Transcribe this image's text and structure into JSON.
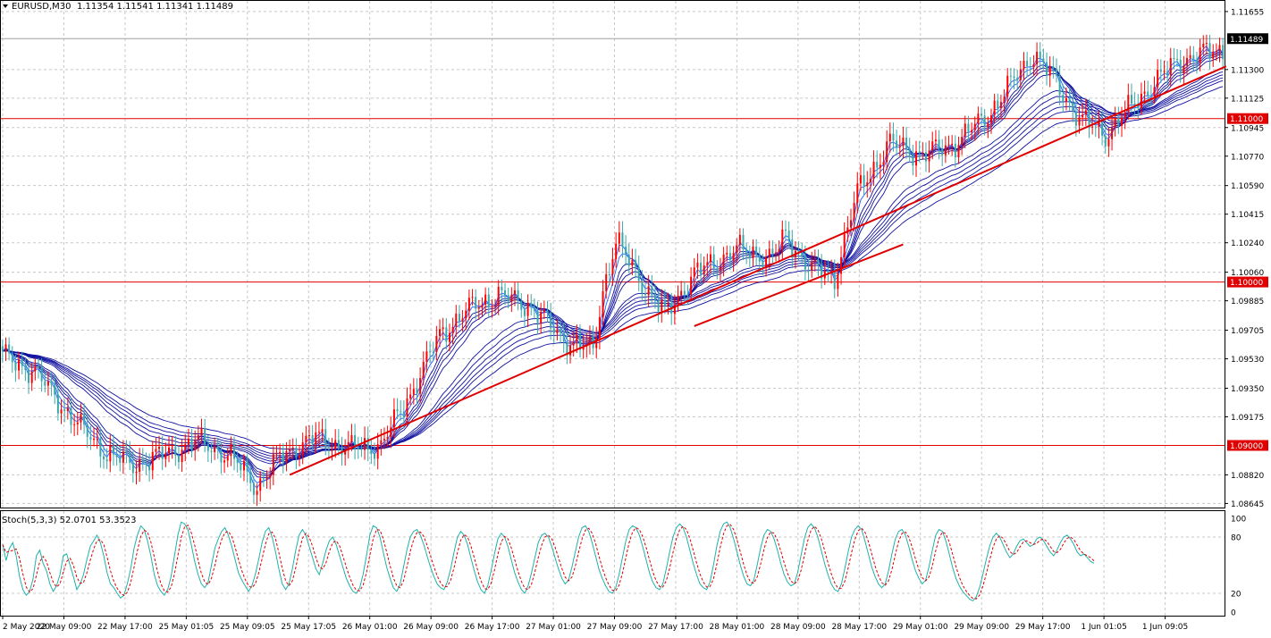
{
  "window": {
    "symbol_label": "EURUSD,M30",
    "ohlc_label": "1.11354 1.11541 1.11341 1.11489",
    "collapse_icon": "triangle-down-icon"
  },
  "colors": {
    "bull_candle": "#ff0000",
    "bear_candle": "#3aa8a8",
    "ma_ribbon": "#1010a0",
    "ma_fast": "#2060ff",
    "trendline": "#e00000",
    "level_line": "#e00000",
    "level_tag_bg": "#e00000",
    "price_tag_bg": "#000000",
    "grid": "#c8c8c8",
    "stoch_main": "#20b2aa",
    "stoch_signal": "#e00000"
  },
  "chart_data": [
    {
      "type": "candlestick",
      "title": "EURUSD,M30",
      "y_axis_ticks": [
        "1.11655",
        "1.11300",
        "1.11125",
        "1.10945",
        "1.10770",
        "1.10590",
        "1.10415",
        "1.10240",
        "1.10060",
        "1.09885",
        "1.09705",
        "1.09530",
        "1.09350",
        "1.09175",
        "1.08820",
        "1.08645"
      ],
      "ylim": [
        1.0862,
        1.1172
      ],
      "x_axis_ticks": [
        "2 May 2020",
        "22 May 09:00",
        "22 May 17:00",
        "25 May 01:05",
        "25 May 09:05",
        "25 May 17:05",
        "26 May 01:00",
        "26 May 09:00",
        "26 May 17:00",
        "27 May 01:00",
        "27 May 09:00",
        "27 May 17:00",
        "28 May 01:00",
        "28 May 09:00",
        "28 May 17:00",
        "29 May 01:00",
        "29 May 09:00",
        "29 May 17:00",
        "1 Jun 01:05",
        "1 Jun 09:05"
      ],
      "current_price": "1.11489",
      "horizontal_levels": [
        {
          "value": 1.11,
          "label": "1.11000"
        },
        {
          "value": 1.1,
          "label": "1.10000"
        },
        {
          "value": 1.09,
          "label": "1.09000"
        }
      ],
      "close_path": [
        [
          0,
          1.0955
        ],
        [
          10,
          1.0945
        ],
        [
          22,
          1.0915
        ],
        [
          32,
          1.0895
        ],
        [
          40,
          1.0888
        ],
        [
          50,
          1.0895
        ],
        [
          60,
          1.0903
        ],
        [
          70,
          1.0893
        ],
        [
          78,
          1.0875
        ],
        [
          86,
          1.0895
        ],
        [
          96,
          1.0905
        ],
        [
          106,
          1.0898
        ],
        [
          116,
          1.09
        ],
        [
          126,
          1.0935
        ],
        [
          134,
          1.0968
        ],
        [
          144,
          1.0985
        ],
        [
          152,
          1.0992
        ],
        [
          162,
          1.0985
        ],
        [
          172,
          1.0965
        ],
        [
          181,
          1.0958
        ],
        [
          184,
          1.0995
        ],
        [
          188,
          1.1025
        ],
        [
          196,
          1.1
        ],
        [
          203,
          1.098
        ],
        [
          212,
          1.1005
        ],
        [
          225,
          1.102
        ],
        [
          236,
          1.1015
        ],
        [
          240,
          1.1028
        ],
        [
          248,
          1.1008
        ],
        [
          255,
          1.1003
        ],
        [
          262,
          1.1055
        ],
        [
          272,
          1.1085
        ],
        [
          282,
          1.1078
        ],
        [
          292,
          1.1085
        ],
        [
          302,
          1.1102
        ],
        [
          316,
          1.114
        ],
        [
          322,
          1.1125
        ],
        [
          330,
          1.11
        ],
        [
          338,
          1.109
        ],
        [
          344,
          1.1103
        ],
        [
          352,
          1.112
        ],
        [
          360,
          1.1135
        ],
        [
          368,
          1.114
        ],
        [
          374,
          1.1142
        ]
      ],
      "total_bars": 375,
      "trendlines": [
        {
          "from": [
            88,
            1.0882
          ],
          "to": [
            375,
            1.1132
          ]
        },
        {
          "from": [
            212,
            1.0973
          ],
          "to": [
            276,
            1.1023
          ]
        }
      ],
      "ma_periods": [
        3,
        5,
        8,
        10,
        12,
        15,
        30,
        35,
        40,
        45,
        50,
        60
      ]
    },
    {
      "type": "line",
      "title": "Stoch(5,3,3) 52.0701 53.3523",
      "y_axis_ticks": [
        "100",
        "80",
        "20",
        "0"
      ],
      "ylim": [
        0,
        100
      ],
      "levels": [
        20,
        80
      ],
      "series": [
        {
          "name": "main",
          "values": [
            72,
            55,
            68,
            74,
            60,
            38,
            24,
            18,
            22,
            35,
            60,
            66,
            52,
            44,
            30,
            22,
            28,
            40,
            60,
            62,
            50,
            38,
            24,
            30,
            40,
            56,
            70,
            76,
            82,
            74,
            60,
            42,
            30,
            26,
            20,
            15,
            18,
            30,
            46,
            68,
            82,
            92,
            88,
            76,
            60,
            40,
            28,
            22,
            18,
            24,
            38,
            60,
            82,
            96,
            94,
            88,
            72,
            54,
            40,
            30,
            26,
            32,
            50,
            68,
            78,
            86,
            90,
            82,
            70,
            56,
            42,
            34,
            28,
            22,
            28,
            40,
            56,
            74,
            86,
            90,
            80,
            64,
            46,
            30,
            24,
            30,
            46,
            66,
            82,
            88,
            82,
            70,
            58,
            46,
            40,
            52,
            66,
            76,
            80,
            72,
            60,
            48,
            36,
            28,
            22,
            20,
            26,
            40,
            60,
            82,
            92,
            90,
            80,
            64,
            48,
            36,
            26,
            22,
            30,
            48,
            66,
            80,
            86,
            88,
            82,
            72,
            60,
            48,
            38,
            30,
            26,
            24,
            32,
            46,
            64,
            80,
            86,
            82,
            72,
            58,
            44,
            32,
            24,
            20,
            28,
            44,
            62,
            78,
            84,
            80,
            70,
            56,
            42,
            32,
            24,
            20,
            28,
            42,
            58,
            74,
            82,
            84,
            80,
            70,
            58,
            46,
            36,
            30,
            34,
            48,
            64,
            80,
            90,
            92,
            86,
            74,
            60,
            46,
            36,
            28,
            22,
            20,
            26,
            40,
            58,
            76,
            88,
            92,
            90,
            82,
            70,
            56,
            42,
            32,
            26,
            24,
            30,
            46,
            64,
            80,
            90,
            94,
            90,
            80,
            66,
            52,
            40,
            30,
            26,
            24,
            32,
            50,
            70,
            86,
            94,
            96,
            90,
            78,
            64,
            50,
            38,
            30,
            28,
            34,
            50,
            68,
            82,
            88,
            86,
            78,
            66,
            52,
            40,
            32,
            28,
            30,
            42,
            60,
            78,
            90,
            94,
            90,
            80,
            66,
            52,
            40,
            30,
            24,
            22,
            30,
            46,
            64,
            80,
            88,
            92,
            88,
            76,
            62,
            48,
            38,
            30,
            26,
            30,
            44,
            62,
            78,
            86,
            88,
            82,
            70,
            56,
            44,
            36,
            30,
            34,
            48,
            66,
            82,
            88,
            86,
            76,
            62,
            48,
            36,
            28,
            22,
            18,
            14,
            12,
            16,
            26,
            40,
            56,
            70,
            80,
            84,
            80,
            72,
            64,
            58,
            62,
            70,
            76,
            78,
            74,
            70,
            72,
            78,
            80,
            76,
            70,
            64,
            60,
            66,
            74,
            80,
            82,
            78,
            72,
            64,
            60,
            62,
            58,
            54,
            52
          ]
        },
        {
          "name": "signal",
          "values": []
        }
      ]
    }
  ],
  "stoch_label": "Stoch(5,3,3) 52.0701 53.3523"
}
